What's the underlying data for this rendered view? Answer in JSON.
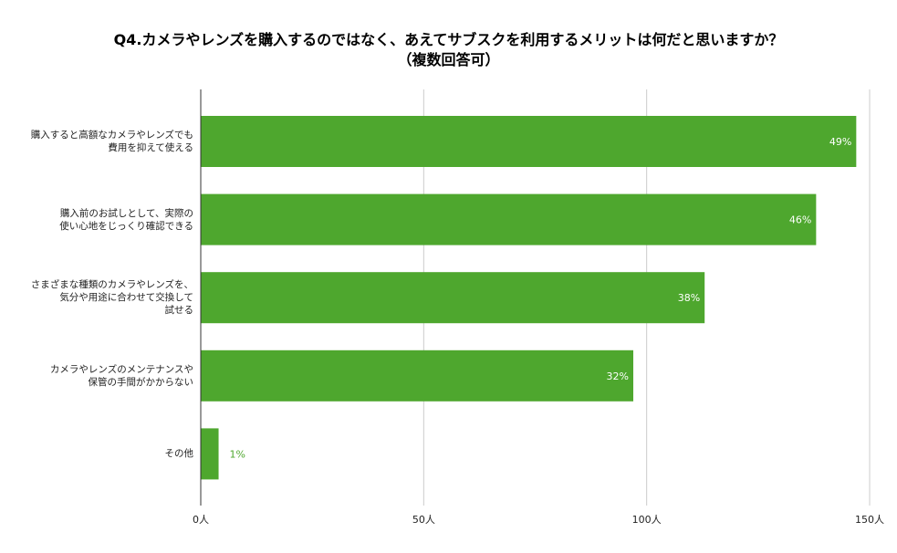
{
  "chart_data": {
    "type": "bar",
    "orientation": "horizontal",
    "title": [
      "Q4.カメラやレンズを購入するのではなく、あえてサブスクを利用するメリットは何だと思いますか？",
      "（複数回答可）"
    ],
    "categories": [
      [
        "購入すると高額なカメラやレンズでも",
        "費用を抑えて使える"
      ],
      [
        "購入前のお試しとして、実際の",
        "使い心地をじっくり確認できる"
      ],
      [
        "さまざまな種類のカメラやレンズを、",
        "気分や用途に合わせて交換して",
        "試せる"
      ],
      [
        "カメラやレンズのメンテナンスや",
        "保管の手間がかからない"
      ],
      [
        "その他"
      ]
    ],
    "values": [
      147,
      138,
      113,
      97,
      4
    ],
    "data_labels": [
      "49%",
      "46%",
      "38%",
      "32%",
      "1%"
    ],
    "x_ticks": [
      {
        "value": 0,
        "label": "0人"
      },
      {
        "value": 50,
        "label": "50人"
      },
      {
        "value": 100,
        "label": "100人"
      },
      {
        "value": 150,
        "label": "150人"
      }
    ],
    "xlim": [
      0,
      150
    ],
    "grid": true,
    "legend": "none",
    "colors": {
      "bar": "#4ea72e",
      "label_inside": "#ffffff",
      "label_outside": "#4ea72e",
      "grid": "#cccccc",
      "axis": "#333333"
    }
  }
}
